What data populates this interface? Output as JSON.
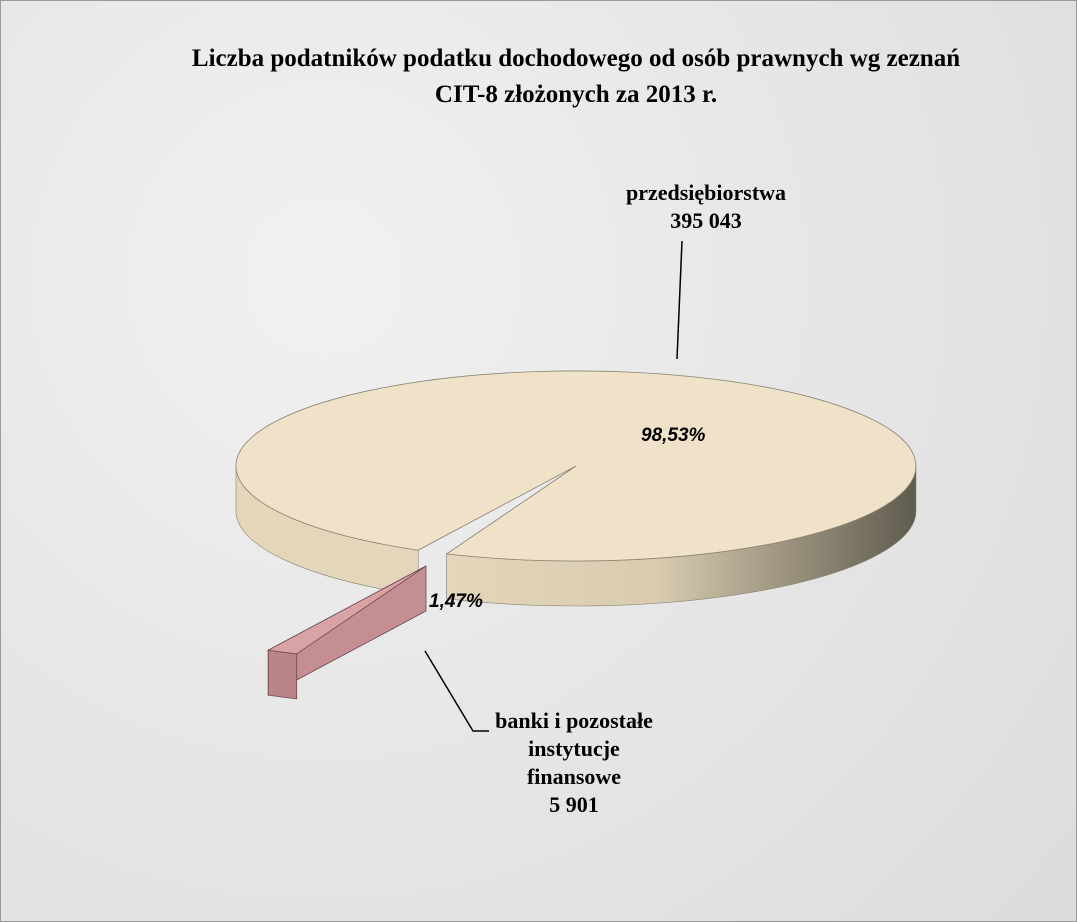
{
  "chart_data": {
    "type": "pie",
    "title": "Liczba podatników podatku dochodowego od osób prawnych wg zeznań CIT-8 złożonych za 2013 r.",
    "categories": [
      "przedsiębiorstwa",
      "banki i pozostałe instytucje finansowe"
    ],
    "values": [
      395043,
      5901
    ],
    "value_labels": [
      "395 043",
      "5 901"
    ],
    "percentages": [
      98.53,
      1.47
    ],
    "percentage_labels": [
      "98,53%",
      "1,47%"
    ],
    "colors": [
      "#efe2c9",
      "#d9a3a6"
    ]
  }
}
